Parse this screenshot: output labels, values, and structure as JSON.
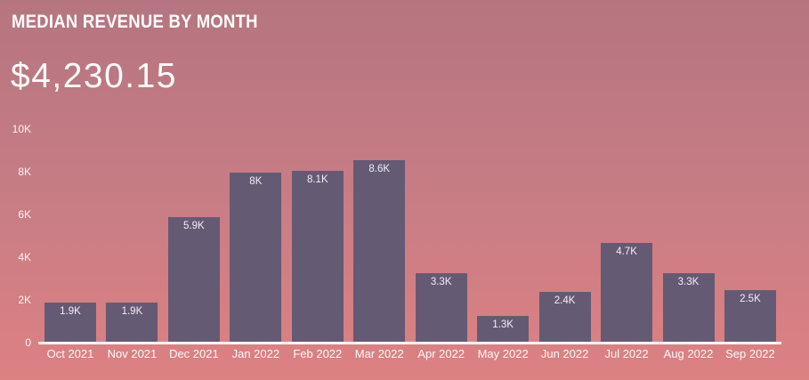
{
  "header": {
    "title": "MEDIAN REVENUE BY MONTH",
    "kpi_value": "$4,230.15"
  },
  "colors": {
    "bg_top": "#b57580",
    "bg_bottom": "#dd8183",
    "bar": "#655a74",
    "axis": "#ffffff",
    "text": "#ffffff"
  },
  "chart_data": {
    "type": "bar",
    "title": "MEDIAN REVENUE BY MONTH",
    "subtitle": "$4,230.15",
    "categories": [
      "Oct 2021",
      "Nov 2021",
      "Dec 2021",
      "Jan 2022",
      "Feb 2022",
      "Mar 2022",
      "Apr 2022",
      "May 2022",
      "Jun 2022",
      "Jul 2022",
      "Aug 2022",
      "Sep 2022"
    ],
    "values": [
      1900,
      1900,
      5900,
      8000,
      8100,
      8600,
      3300,
      1300,
      2400,
      4700,
      3300,
      2500
    ],
    "bar_labels": [
      "1.9K",
      "1.9K",
      "5.9K",
      "8K",
      "8.1K",
      "8.6K",
      "3.3K",
      "1.3K",
      "2.4K",
      "4.7K",
      "3.3K",
      "2.5K"
    ],
    "xlabel": "",
    "ylabel": "",
    "ylim": [
      0,
      10000
    ],
    "ytick_values": [
      0,
      2000,
      4000,
      6000,
      8000,
      10000
    ],
    "ytick_labels": [
      "0",
      "2K",
      "4K",
      "6K",
      "8K",
      "10K"
    ],
    "grid": false,
    "legend": "none",
    "bar_label_position": "inside-top"
  }
}
